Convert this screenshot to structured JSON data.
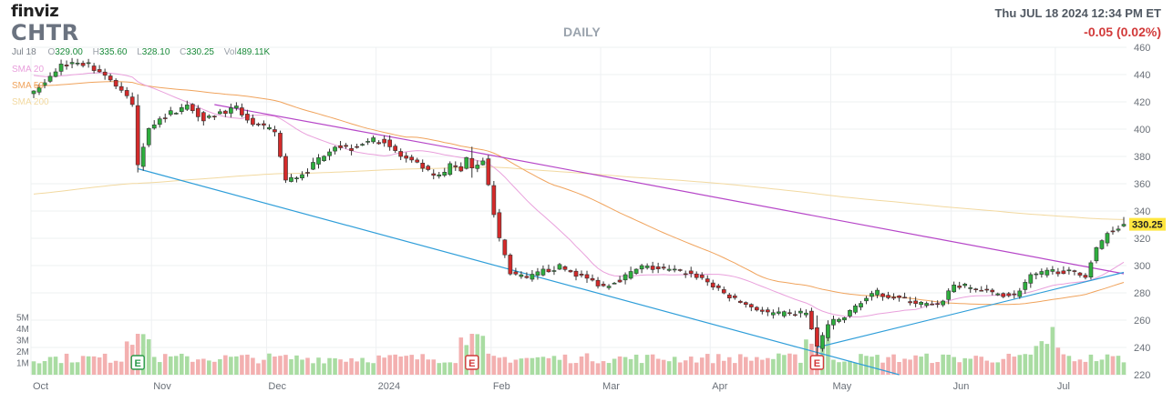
{
  "header": {
    "brand": "finviz",
    "ticker": "CHTR",
    "timeframe": "DAILY",
    "datetime": "Thu JUL 18 2024 12:34 PM ET",
    "change": "-0.05 (0.02%)"
  },
  "quote": {
    "date": "Jul 18",
    "open_label": "O",
    "open": "329.00",
    "high_label": "H",
    "high": "335.60",
    "low_label": "L",
    "low": "328.10",
    "close_label": "C",
    "close": "330.25",
    "vol_label": "Vol",
    "vol": "489.11K"
  },
  "legend": [
    {
      "label": "SMA 20",
      "color": "#e9a0dc"
    },
    {
      "label": "SMA 50",
      "color": "#f0a35c"
    },
    {
      "label": "SMA 200",
      "color": "#f2d9a0"
    }
  ],
  "colors": {
    "up": "#2eae3e",
    "down": "#d42a2a",
    "vol_up": "#a9dca2",
    "vol_down": "#f3b0b0",
    "sma20": "#e9a0dc",
    "sma50": "#f0a35c",
    "sma200": "#f2d9a0",
    "trend_upper": "#b646c8",
    "trend_lower": "#2f9ed9",
    "earnings_up": "#2a9a48",
    "earnings_down": "#d23a3a",
    "last_price_bg": "#ffe640"
  },
  "chart_data": {
    "type": "candlestick",
    "last_price_label": "330.25",
    "earnings_marker_text": "E",
    "y_ticks": [
      220,
      240,
      260,
      280,
      300,
      320,
      340,
      360,
      380,
      400,
      420,
      440,
      460
    ],
    "ylim": [
      220,
      460
    ],
    "vol_ticks": [
      "1M",
      "2M",
      "3M",
      "4M",
      "5M"
    ],
    "x_labels": [
      "Oct",
      "Nov",
      "Dec",
      "2024",
      "Feb",
      "Mar",
      "Apr",
      "May",
      "Jun",
      "Jul"
    ],
    "earnings": [
      {
        "date": "2023-10-27",
        "result": "up"
      },
      {
        "date": "2024-01-26",
        "result": "down"
      },
      {
        "date": "2024-04-26",
        "result": "down"
      }
    ],
    "waypoints": [
      [
        "2023-10-02",
        428
      ],
      [
        "2023-10-05",
        438
      ],
      [
        "2023-10-09",
        447
      ],
      [
        "2023-10-12",
        449
      ],
      [
        "2023-10-16",
        447
      ],
      [
        "2023-10-19",
        440
      ],
      [
        "2023-10-24",
        428
      ],
      [
        "2023-10-26",
        418
      ],
      [
        "2023-10-27",
        373
      ],
      [
        "2023-10-31",
        402
      ],
      [
        "2023-11-06",
        412
      ],
      [
        "2023-11-09",
        417
      ],
      [
        "2023-11-14",
        408
      ],
      [
        "2023-11-17",
        412
      ],
      [
        "2023-11-22",
        415
      ],
      [
        "2023-11-28",
        404
      ],
      [
        "2023-12-04",
        398
      ],
      [
        "2023-12-06",
        362
      ],
      [
        "2023-12-08",
        365
      ],
      [
        "2023-12-12",
        370
      ],
      [
        "2023-12-15",
        382
      ],
      [
        "2023-12-19",
        388
      ],
      [
        "2023-12-22",
        386
      ],
      [
        "2023-12-28",
        392
      ],
      [
        "2024-01-03",
        391
      ],
      [
        "2024-01-08",
        380
      ],
      [
        "2024-01-12",
        372
      ],
      [
        "2024-01-17",
        365
      ],
      [
        "2024-01-19",
        367
      ],
      [
        "2024-01-22",
        374
      ],
      [
        "2024-01-24",
        370
      ],
      [
        "2024-01-25",
        380
      ],
      [
        "2024-01-26",
        372
      ],
      [
        "2024-01-30",
        378
      ],
      [
        "2024-02-01",
        338
      ],
      [
        "2024-02-02",
        320
      ],
      [
        "2024-02-06",
        295
      ],
      [
        "2024-02-09",
        290
      ],
      [
        "2024-02-14",
        296
      ],
      [
        "2024-02-20",
        299
      ],
      [
        "2024-02-26",
        292
      ],
      [
        "2024-03-01",
        285
      ],
      [
        "2024-03-06",
        290
      ],
      [
        "2024-03-12",
        299
      ],
      [
        "2024-03-18",
        297
      ],
      [
        "2024-03-22",
        295
      ],
      [
        "2024-03-27",
        291
      ],
      [
        "2024-04-02",
        282
      ],
      [
        "2024-04-05",
        275
      ],
      [
        "2024-04-10",
        270
      ],
      [
        "2024-04-15",
        265
      ],
      [
        "2024-04-19",
        264
      ],
      [
        "2024-04-24",
        266
      ],
      [
        "2024-04-26",
        240
      ],
      [
        "2024-04-30",
        257
      ],
      [
        "2024-05-03",
        262
      ],
      [
        "2024-05-08",
        274
      ],
      [
        "2024-05-13",
        280
      ],
      [
        "2024-05-17",
        276
      ],
      [
        "2024-05-23",
        272
      ],
      [
        "2024-05-29",
        270
      ],
      [
        "2024-06-03",
        286
      ],
      [
        "2024-06-07",
        283
      ],
      [
        "2024-06-12",
        280
      ],
      [
        "2024-06-18",
        278
      ],
      [
        "2024-06-24",
        292
      ],
      [
        "2024-06-28",
        296
      ],
      [
        "2024-07-02",
        296
      ],
      [
        "2024-07-05",
        294
      ],
      [
        "2024-07-09",
        293
      ],
      [
        "2024-07-11",
        312
      ],
      [
        "2024-07-15",
        324
      ],
      [
        "2024-07-18",
        330.25
      ]
    ],
    "trendlines": [
      {
        "name": "upper",
        "points": [
          [
            "2023-11-16",
            418
          ],
          [
            "2024-01-30",
            382
          ],
          [
            "2024-07-18",
            294
          ]
        ]
      },
      {
        "name": "lower",
        "points": [
          [
            "2023-10-27",
            371
          ],
          [
            "2024-05-17",
            220
          ]
        ]
      },
      {
        "name": "rising",
        "points": [
          [
            "2024-04-26",
            240
          ],
          [
            "2024-07-18",
            295
          ]
        ]
      }
    ]
  }
}
